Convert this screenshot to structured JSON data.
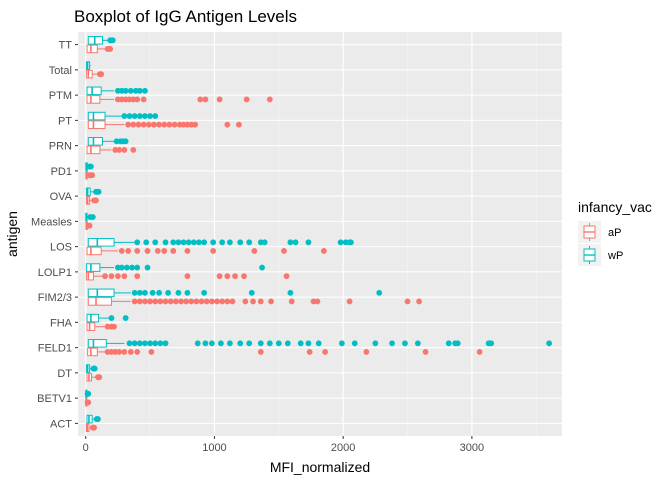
{
  "chart_data": {
    "type": "boxplot",
    "title": "Boxplot of IgG Antigen Levels",
    "xlabel": "MFI_normalized",
    "ylabel": "antigen",
    "xlim": [
      -60,
      3700
    ],
    "x_ticks": [
      0,
      1000,
      2000,
      3000
    ],
    "x_tick_labels": [
      "0",
      "1000",
      "2000",
      "3000"
    ],
    "grid": true,
    "legend": {
      "title": "infancy_vac",
      "position": "right",
      "entries": [
        {
          "label": "aP",
          "color": "#F8766D"
        },
        {
          "label": "wP",
          "color": "#00BFC4"
        }
      ]
    },
    "categories": [
      "ACT",
      "BETV1",
      "DT",
      "FELD1",
      "FHA",
      "FIM2/3",
      "LOLP1",
      "LOS",
      "Measles",
      "OVA",
      "PD1",
      "PRN",
      "PT",
      "PTM",
      "Total",
      "TT"
    ],
    "series": [
      {
        "name": "aP",
        "color": "#F8766D",
        "boxes": [
          {
            "category": "ACT",
            "q1": 5,
            "median": 12,
            "q3": 25,
            "whisker_high": 50,
            "outliers": [
              55,
              60,
              65
            ]
          },
          {
            "category": "BETV1",
            "q1": 1,
            "median": 3,
            "q3": 6,
            "whisker_high": 12,
            "outliers": [
              15,
              20
            ]
          },
          {
            "category": "DT",
            "q1": 10,
            "median": 25,
            "q3": 45,
            "whisker_high": 90,
            "outliers": [
              95,
              100,
              105
            ]
          },
          {
            "category": "FELD1",
            "q1": 15,
            "median": 40,
            "q3": 90,
            "whisker_high": 150,
            "outliers": [
              170,
              200,
              230,
              260,
              300,
              350,
              400,
              510,
              1360,
              1740,
              1860,
              2180,
              2640,
              3060
            ]
          },
          {
            "category": "FHA",
            "q1": 10,
            "median": 30,
            "q3": 70,
            "whisker_high": 150,
            "outliers": [
              170,
              200,
              220
            ]
          },
          {
            "category": "FIM2/3",
            "q1": 20,
            "median": 80,
            "q3": 200,
            "whisker_high": 350,
            "outliers": [
              380,
              420,
              460,
              500,
              540,
              580,
              620,
              660,
              700,
              740,
              780,
              820,
              860,
              900,
              940,
              980,
              1020,
              1060,
              1100,
              1140,
              1240,
              1300,
              1360,
              1440,
              1600,
              1770,
              1800,
              2050,
              2500,
              2590
            ]
          },
          {
            "category": "LOLP1",
            "q1": 5,
            "median": 20,
            "q3": 60,
            "whisker_high": 130,
            "outliers": [
              150,
              200,
              250,
              300,
              400,
              790,
              1040,
              1100,
              1160,
              1230,
              1560
            ]
          },
          {
            "category": "LOS",
            "q1": 10,
            "median": 40,
            "q3": 120,
            "whisker_high": 250,
            "outliers": [
              280,
              330,
              400,
              480,
              560,
              610,
              680,
              790,
              990,
              1310,
              1540,
              1850
            ]
          },
          {
            "category": "Measles",
            "q1": 2,
            "median": 6,
            "q3": 12,
            "whisker_high": 20,
            "outliers": [
              25,
              30
            ]
          },
          {
            "category": "OVA",
            "q1": 5,
            "median": 15,
            "q3": 30,
            "whisker_high": 60,
            "outliers": [
              65,
              70,
              80
            ]
          },
          {
            "category": "PD1",
            "q1": 1,
            "median": 5,
            "q3": 12,
            "whisker_high": 25,
            "outliers": [
              30,
              40,
              50
            ]
          },
          {
            "category": "PRN",
            "q1": 10,
            "median": 40,
            "q3": 110,
            "whisker_high": 200,
            "outliers": [
              230,
              260,
              300,
              370
            ]
          },
          {
            "category": "PT",
            "q1": 20,
            "median": 60,
            "q3": 150,
            "whisker_high": 300,
            "outliers": [
              330,
              370,
              410,
              450,
              490,
              530,
              570,
              610,
              650,
              690,
              730,
              760,
              790,
              820,
              850,
              1100,
              1190
            ]
          },
          {
            "category": "PTM",
            "q1": 10,
            "median": 40,
            "q3": 110,
            "whisker_high": 220,
            "outliers": [
              250,
              280,
              310,
              340,
              370,
              400,
              450,
              890,
              930,
              1040,
              1250,
              1430
            ]
          },
          {
            "category": "Total",
            "q1": 5,
            "median": 20,
            "q3": 50,
            "whisker_high": 100,
            "outliers": [
              110,
              120
            ]
          },
          {
            "category": "TT",
            "q1": 10,
            "median": 40,
            "q3": 90,
            "whisker_high": 160,
            "outliers": [
              170,
              180,
              190
            ]
          }
        ]
      },
      {
        "name": "wP",
        "color": "#00BFC4",
        "boxes": [
          {
            "category": "ACT",
            "q1": 10,
            "median": 25,
            "q3": 50,
            "whisker_high": 80,
            "outliers": [
              85,
              90,
              95
            ]
          },
          {
            "category": "BETV1",
            "q1": 1,
            "median": 3,
            "q3": 6,
            "whisker_high": 12,
            "outliers": [
              15,
              20
            ]
          },
          {
            "category": "DT",
            "q1": 5,
            "median": 15,
            "q3": 30,
            "whisker_high": 55,
            "outliers": [
              60,
              65,
              70
            ]
          },
          {
            "category": "FELD1",
            "q1": 20,
            "median": 60,
            "q3": 160,
            "whisker_high": 300,
            "outliers": [
              340,
              380,
              420,
              460,
              500,
              540,
              580,
              620,
              870,
              930,
              980,
              1050,
              1120,
              1200,
              1270,
              1360,
              1430,
              1500,
              1570,
              1670,
              1730,
              1810,
              1990,
              2090,
              2250,
              2380,
              2480,
              2580,
              2820,
              2870,
              2890,
              3130,
              3150,
              3600
            ]
          },
          {
            "category": "FHA",
            "q1": 10,
            "median": 40,
            "q3": 100,
            "whisker_high": 180,
            "outliers": [
              200,
              310
            ]
          },
          {
            "category": "FIM2/3",
            "q1": 20,
            "median": 90,
            "q3": 220,
            "whisker_high": 350,
            "outliers": [
              380,
              420,
              460,
              520,
              570,
              640,
              720,
              790,
              920,
              1290,
              1590,
              2280
            ]
          },
          {
            "category": "LOLP1",
            "q1": 5,
            "median": 40,
            "q3": 110,
            "whisker_high": 220,
            "outliers": [
              250,
              280,
              320,
              360,
              400,
              480,
              1370
            ]
          },
          {
            "category": "LOS",
            "q1": 20,
            "median": 90,
            "q3": 220,
            "whisker_high": 380,
            "outliers": [
              400,
              470,
              540,
              620,
              680,
              720,
              760,
              800,
              840,
              880,
              920,
              990,
              1060,
              1120,
              1200,
              1270,
              1360,
              1390,
              1590,
              1630,
              1730,
              1980,
              2020,
              2050,
              2060
            ]
          },
          {
            "category": "Measles",
            "q1": 1,
            "median": 4,
            "q3": 10,
            "whisker_high": 25,
            "outliers": [
              35,
              55
            ]
          },
          {
            "category": "OVA",
            "q1": 5,
            "median": 15,
            "q3": 35,
            "whisker_high": 70,
            "outliers": [
              80,
              90,
              100
            ]
          },
          {
            "category": "PD1",
            "q1": 1,
            "median": 5,
            "q3": 12,
            "whisker_high": 25,
            "outliers": [
              30,
              35,
              40
            ]
          },
          {
            "category": "PRN",
            "q1": 20,
            "median": 60,
            "q3": 130,
            "whisker_high": 220,
            "outliers": [
              240,
              270,
              290,
              310
            ]
          },
          {
            "category": "PT",
            "q1": 20,
            "median": 60,
            "q3": 150,
            "whisker_high": 280,
            "outliers": [
              300,
              340,
              380,
              420,
              460,
              500,
              540
            ]
          },
          {
            "category": "PTM",
            "q1": 10,
            "median": 50,
            "q3": 120,
            "whisker_high": 220,
            "outliers": [
              250,
              280,
              310,
              350,
              390,
              420,
              460
            ]
          },
          {
            "category": "Total",
            "q1": 5,
            "median": 15,
            "q3": 30,
            "whisker_high": 40,
            "outliers": []
          },
          {
            "category": "TT",
            "q1": 20,
            "median": 70,
            "q3": 130,
            "whisker_high": 180,
            "outliers": [
              190,
              200,
              210
            ]
          }
        ]
      }
    ]
  }
}
